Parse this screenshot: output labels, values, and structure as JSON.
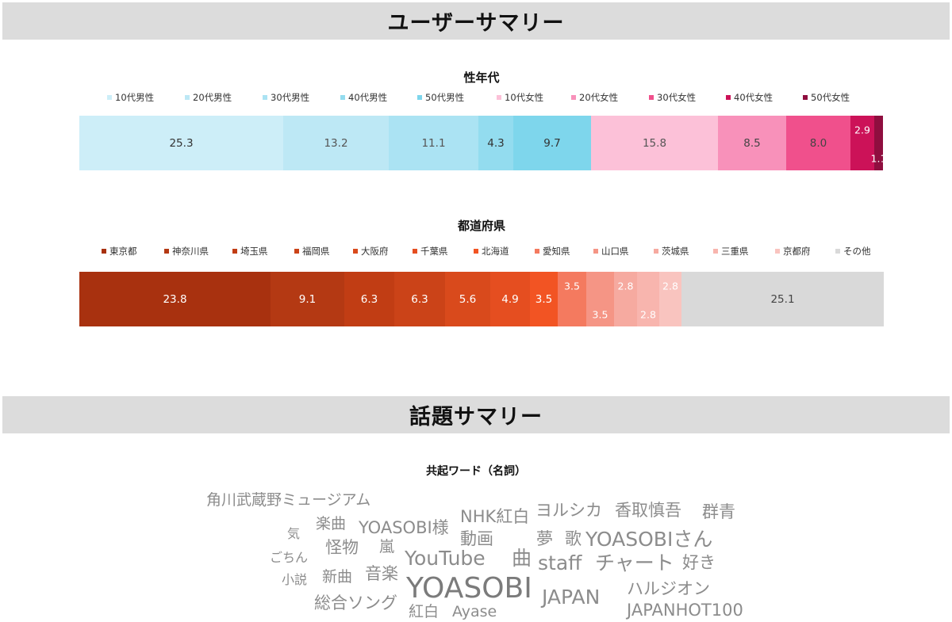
{
  "headers": {
    "user_summary": "ユーザーサマリー",
    "topic_summary": "話題サマリー"
  },
  "chart_data": [
    {
      "type": "bar",
      "stacked": true,
      "orientation": "horizontal",
      "title": "性年代",
      "total": 100,
      "legend_position": "top",
      "series": [
        {
          "name": "10代男性",
          "value": 25.3,
          "color": "#cdeef8",
          "text_color": "#333333"
        },
        {
          "name": "20代男性",
          "value": 13.2,
          "color": "#bde8f5",
          "text_color": "#555555"
        },
        {
          "name": "30代男性",
          "value": 11.1,
          "color": "#abe3f3",
          "text_color": "#555555"
        },
        {
          "name": "40代男性",
          "value": 4.3,
          "color": "#93dcef",
          "text_color": "#333333"
        },
        {
          "name": "50代男性",
          "value": 9.7,
          "color": "#7ed6ec",
          "text_color": "#333333"
        },
        {
          "name": "10代女性",
          "value": 15.8,
          "color": "#fcc1d8",
          "text_color": "#555555"
        },
        {
          "name": "20代女性",
          "value": 8.5,
          "color": "#f891ba",
          "text_color": "#444444"
        },
        {
          "name": "30代女性",
          "value": 8.0,
          "color": "#f0508c",
          "text_color": "#444444"
        },
        {
          "name": "40代女性",
          "value": 2.9,
          "color": "#cc1258",
          "text_color": "#ffffff",
          "label": "top"
        },
        {
          "name": "50代女性",
          "value": 1.1,
          "color": "#8f0e3f",
          "text_color": "#ffffff",
          "label": "bottom"
        }
      ]
    },
    {
      "type": "bar",
      "stacked": true,
      "orientation": "horizontal",
      "title": "都道府県",
      "total": 100,
      "legend_position": "top",
      "series": [
        {
          "name": "東京都",
          "value": 23.8,
          "color": "#a8310f",
          "text_color": "#ffffff"
        },
        {
          "name": "神奈川県",
          "value": 9.1,
          "color": "#b43913",
          "text_color": "#ffffff"
        },
        {
          "name": "埼玉県",
          "value": 6.3,
          "color": "#c13d14",
          "text_color": "#ffffff"
        },
        {
          "name": "福岡県",
          "value": 6.3,
          "color": "#cb4318",
          "text_color": "#ffffff"
        },
        {
          "name": "大阪府",
          "value": 5.6,
          "color": "#d94a1c",
          "text_color": "#ffffff"
        },
        {
          "name": "千葉県",
          "value": 4.9,
          "color": "#e54e20",
          "text_color": "#ffffff"
        },
        {
          "name": "北海道",
          "value": 3.5,
          "color": "#f25423",
          "text_color": "#ffffff"
        },
        {
          "name": "愛知県",
          "value": 3.5,
          "color": "#f47a5f",
          "text_color": "#ffffff",
          "label": "top"
        },
        {
          "name": "山口県",
          "value": 3.5,
          "color": "#f59585",
          "text_color": "#ffffff",
          "label": "bottom"
        },
        {
          "name": "茨城県",
          "value": 2.8,
          "color": "#f6aaa0",
          "text_color": "#ffffff",
          "label": "top"
        },
        {
          "name": "三重県",
          "value": 2.8,
          "color": "#f8b5ae",
          "text_color": "#ffffff",
          "label": "bottom"
        },
        {
          "name": "京都府",
          "value": 2.8,
          "color": "#f9c4bf",
          "text_color": "#ffffff",
          "label": "top"
        },
        {
          "name": "その他",
          "value": 25.1,
          "color": "#d9d9d9",
          "text_color": "#444444"
        }
      ]
    }
  ],
  "wordcloud": {
    "title": "共起ワード（名詞）",
    "words": [
      {
        "text": "角川武蔵野ミュージアム",
        "weight": 2
      },
      {
        "text": "NHK紅白",
        "weight": 3
      },
      {
        "text": "ヨルシカ",
        "weight": 3
      },
      {
        "text": "香取慎吾",
        "weight": 3
      },
      {
        "text": "群青",
        "weight": 3
      },
      {
        "text": "気",
        "weight": 1
      },
      {
        "text": "楽曲",
        "weight": 2
      },
      {
        "text": "YOASOBI様",
        "weight": 3
      },
      {
        "text": "動画",
        "weight": 3
      },
      {
        "text": "夢",
        "weight": 3
      },
      {
        "text": "歌",
        "weight": 3
      },
      {
        "text": "YOASOBIさん",
        "weight": 4
      },
      {
        "text": "ごちん",
        "weight": 1
      },
      {
        "text": "怪物",
        "weight": 3
      },
      {
        "text": "嵐",
        "weight": 2
      },
      {
        "text": "YouTube",
        "weight": 4
      },
      {
        "text": "曲",
        "weight": 4
      },
      {
        "text": "staff",
        "weight": 4
      },
      {
        "text": "チャート",
        "weight": 4
      },
      {
        "text": "好き",
        "weight": 3
      },
      {
        "text": "小説",
        "weight": 1
      },
      {
        "text": "新曲",
        "weight": 2
      },
      {
        "text": "音楽",
        "weight": 3
      },
      {
        "text": "YOASOBI",
        "weight": 6
      },
      {
        "text": "JAPAN",
        "weight": 4
      },
      {
        "text": "ハルジオン",
        "weight": 3
      },
      {
        "text": "総合ソング",
        "weight": 3
      },
      {
        "text": "紅白",
        "weight": 2
      },
      {
        "text": "Ayase",
        "weight": 2
      },
      {
        "text": "JAPANHOT100",
        "weight": 3
      }
    ]
  }
}
